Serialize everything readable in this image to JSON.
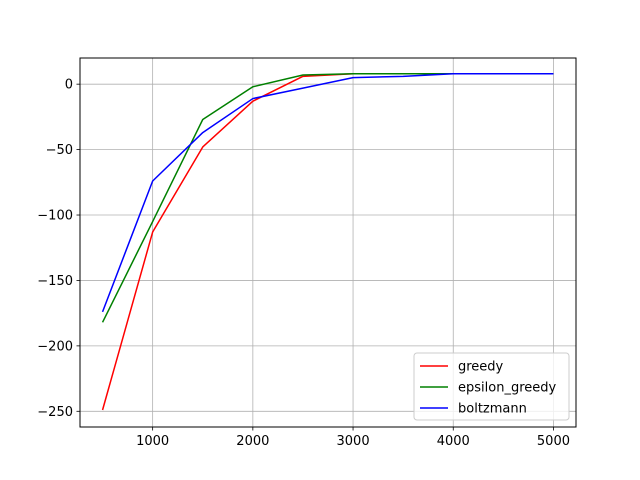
{
  "chart_data": {
    "type": "line",
    "title": "",
    "xlabel": "",
    "ylabel": "",
    "x": [
      500,
      1000,
      1500,
      2000,
      2500,
      3000,
      3500,
      4000,
      4500,
      5000
    ],
    "series": [
      {
        "name": "greedy",
        "color": "#ff0000",
        "values": [
          -249,
          -113,
          -48,
          -13,
          6,
          8,
          8,
          8,
          8,
          8
        ]
      },
      {
        "name": "epsilon_greedy",
        "color": "#008000",
        "values": [
          -182,
          -105,
          -27,
          -2,
          7,
          8,
          8,
          8,
          8,
          8
        ]
      },
      {
        "name": "boltzmann",
        "color": "#0000ff",
        "values": [
          -174,
          -74,
          -37,
          -11,
          -3,
          5,
          6,
          8,
          8,
          8
        ]
      }
    ],
    "xlim": [
      275,
      5225
    ],
    "ylim": [
      -262,
      20
    ],
    "xticks": [
      1000,
      2000,
      3000,
      4000,
      5000
    ],
    "yticks": [
      0,
      -50,
      -100,
      -150,
      -200,
      -250
    ],
    "grid": true,
    "legend": "lower-right"
  }
}
